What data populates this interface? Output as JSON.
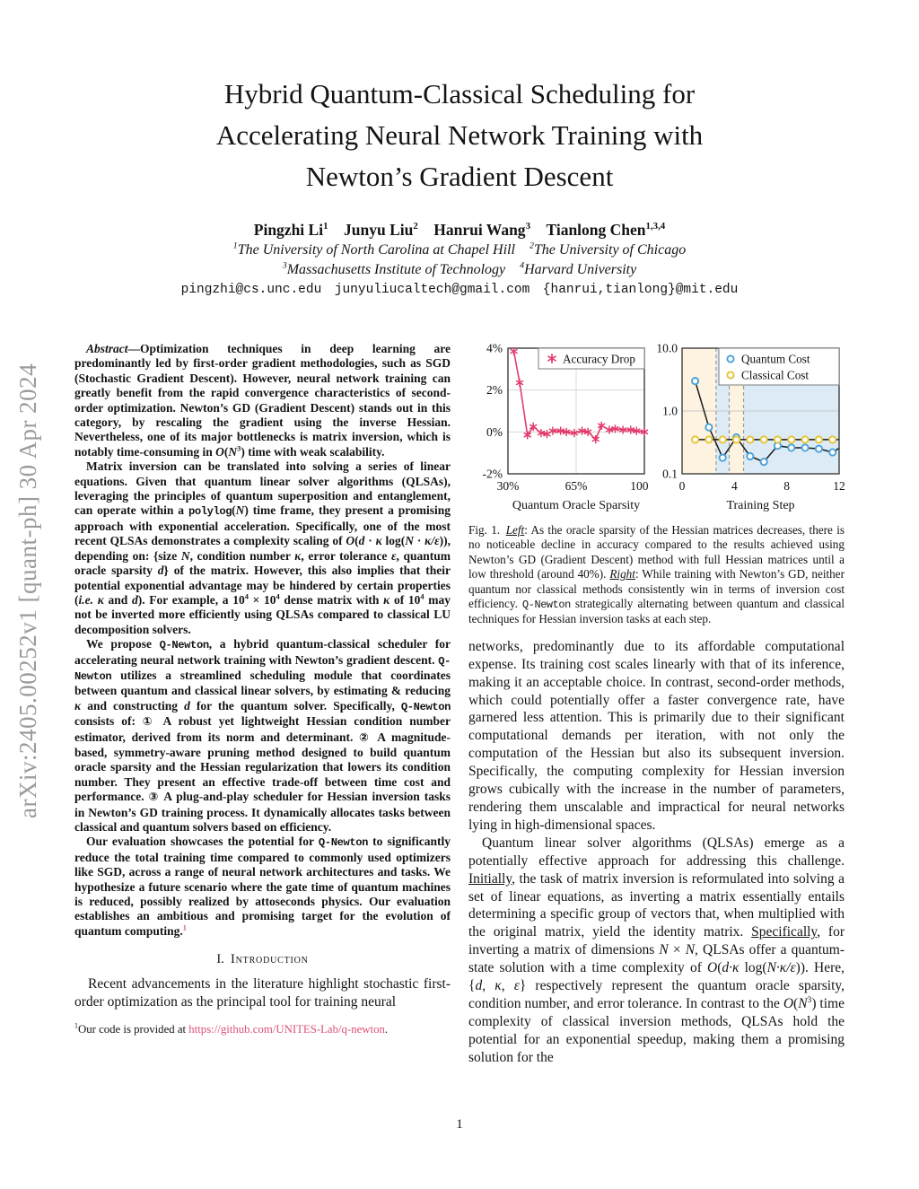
{
  "page": {
    "number": "1"
  },
  "arxiv_banner": "arXiv:2405.00252v1 [quant-ph] 30 Apr 2024",
  "header": {
    "title_lines": [
      "Hybrid Quantum-Classical Scheduling for",
      "Accelerating Neural Network Training with",
      "Newton’s Gradient Descent"
    ],
    "authors": [
      {
        "t": "Pingzhi Li"
      },
      {
        "t": "1",
        "c": "sup"
      },
      {
        "t": " "
      },
      {
        "t": "Junyu Liu"
      },
      {
        "t": "2",
        "c": "sup"
      },
      {
        "t": " "
      },
      {
        "t": "Hanrui Wang"
      },
      {
        "t": "3",
        "c": "sup"
      },
      {
        "t": " "
      },
      {
        "t": "Tianlong Chen"
      },
      {
        "t": "1,3,4",
        "c": "sup"
      }
    ],
    "affiliations_line1": [
      {
        "t": "1",
        "c": "sup"
      },
      {
        "t": "The University of North Carolina at Chapel Hill"
      },
      {
        "t": "  "
      },
      {
        "t": "2",
        "c": "sup"
      },
      {
        "t": "The University of Chicago"
      }
    ],
    "affiliations_line2": [
      {
        "t": "3",
        "c": "sup"
      },
      {
        "t": "Massachusetts Institute of Technology"
      },
      {
        "t": "  "
      },
      {
        "t": "4",
        "c": "sup"
      },
      {
        "t": "Harvard University"
      }
    ],
    "emails": "pingzhi@cs.unc.edu  junyuliucaltech@gmail.com  {hanrui,tianlong}@mit.edu"
  },
  "left_column": {
    "abstract_paragraphs": [
      [
        {
          "t": "Abstract",
          "c": "bi"
        },
        {
          "t": "—Optimization techniques in deep learning are predominantly led by first-order gradient methodologies, such as SGD (Stochastic Gradient Descent). However, neural network training can greatly benefit from the rapid convergence characteristics of second-order optimization. Newton’s GD (Gradient Descent) stands out in this category, by rescaling the gradient using the inverse Hessian. Nevertheless, one of its major bottlenecks is matrix inversion, which is notably time-consuming in "
        },
        {
          "t": "O",
          "c": "i"
        },
        {
          "t": "("
        },
        {
          "t": "N",
          "c": "i"
        },
        {
          "t": "3",
          "c": "sup"
        },
        {
          "t": ") time with weak scalability."
        }
      ],
      [
        {
          "t": "Matrix inversion can be translated into solving a series of linear equations. Given that quantum linear solver algorithms (QLSAs), leveraging the principles of quantum superposition and entanglement, can operate within a "
        },
        {
          "t": "polylog",
          "c": "tt"
        },
        {
          "t": "("
        },
        {
          "t": "N",
          "c": "i"
        },
        {
          "t": ") time frame, they present a promising approach with exponential acceleration. Specifically, one of the most recent QLSAs demonstrates a complexity scaling of "
        },
        {
          "t": "O",
          "c": "i"
        },
        {
          "t": "("
        },
        {
          "t": "d",
          "c": "i"
        },
        {
          "t": " · "
        },
        {
          "t": "κ",
          "c": "i"
        },
        {
          "t": " log("
        },
        {
          "t": "N",
          "c": "i"
        },
        {
          "t": " · "
        },
        {
          "t": "κ/ε",
          "c": "i"
        },
        {
          "t": ")), depending on: {size "
        },
        {
          "t": "N",
          "c": "i"
        },
        {
          "t": ", condition number "
        },
        {
          "t": "κ",
          "c": "i"
        },
        {
          "t": ", error tolerance "
        },
        {
          "t": "ε",
          "c": "i"
        },
        {
          "t": ", quantum oracle sparsity "
        },
        {
          "t": "d",
          "c": "i"
        },
        {
          "t": "} of the matrix. However, this also implies that their potential exponential advantage may be hindered by certain properties ("
        },
        {
          "t": "i.e.",
          "c": "i"
        },
        {
          "t": " "
        },
        {
          "t": "κ",
          "c": "i"
        },
        {
          "t": " and "
        },
        {
          "t": "d",
          "c": "i"
        },
        {
          "t": "). For example, a 10"
        },
        {
          "t": "4",
          "c": "sup"
        },
        {
          "t": " × 10"
        },
        {
          "t": "4",
          "c": "sup"
        },
        {
          "t": " dense matrix with "
        },
        {
          "t": "κ",
          "c": "i"
        },
        {
          "t": " of 10"
        },
        {
          "t": "4",
          "c": "sup"
        },
        {
          "t": " may not be inverted more efficiently using QLSAs compared to classical LU decomposition solvers."
        }
      ],
      [
        {
          "t": "We propose "
        },
        {
          "t": "Q-Newton",
          "c": "tt"
        },
        {
          "t": ", a hybrid quantum-classical scheduler for accelerating neural network training with Newton’s gradient descent. "
        },
        {
          "t": "Q-Newton",
          "c": "tt"
        },
        {
          "t": " utilizes a streamlined scheduling module that coordinates between quantum and classical linear solvers, by estimating & reducing "
        },
        {
          "t": "κ",
          "c": "i"
        },
        {
          "t": " and constructing "
        },
        {
          "t": "d",
          "c": "i"
        },
        {
          "t": " for the quantum solver. Specifically, "
        },
        {
          "t": "Q-Newton",
          "c": "tt"
        },
        {
          "t": " consists of: "
        },
        {
          "t": "①",
          "c": "circ"
        },
        {
          "t": " A robust yet lightweight Hessian condition number estimator, derived from its norm and determinant. "
        },
        {
          "t": "②",
          "c": "circ"
        },
        {
          "t": " A magnitude-based, symmetry-aware pruning method designed to build quantum oracle sparsity and the Hessian regularization that lowers its condition number. They present an effective trade-off between time cost and performance. "
        },
        {
          "t": "③",
          "c": "circ"
        },
        {
          "t": " A plug-and-play scheduler for Hessian inversion tasks in Newton’s GD training process. It dynamically allocates tasks between classical and quantum solvers based on efficiency."
        }
      ],
      [
        {
          "t": "Our evaluation showcases the potential for "
        },
        {
          "t": "Q-Newton",
          "c": "tt"
        },
        {
          "t": " to significantly reduce the total training time compared to commonly used optimizers like SGD, across a range of neural network architectures and tasks. We hypothesize a future scenario where the gate time of quantum machines is reduced, possibly realized by attoseconds physics. Our evaluation establishes an ambitious and promising target for the evolution of quantum computing."
        },
        {
          "t": "1",
          "c": "fnref"
        }
      ]
    ],
    "section1_heading": [
      {
        "t": "I. "
      },
      {
        "t": "Introduction",
        "c": "sc"
      }
    ],
    "intro_paragraph": "Recent advancements in the literature highlight stochastic first-order optimization as the principal tool for training neural",
    "footnote": [
      {
        "t": "1",
        "c": "sup"
      },
      {
        "t": "Our code is provided at "
      },
      {
        "t": "https://github.com/UNITES-Lab/q-newton",
        "c": "link"
      },
      {
        "t": "."
      }
    ]
  },
  "right_column": {
    "figure1": {
      "caption": [
        {
          "t": "Fig. 1. "
        },
        {
          "t": "Left",
          "c": "ui"
        },
        {
          "t": ": As the oracle sparsity of the Hessian matrices decreases, there is no noticeable decline in accuracy compared to the results achieved using Newton’s GD (Gradient Descent) method with full Hessian matrices until a low threshold (around 40%). "
        },
        {
          "t": "Right",
          "c": "ui"
        },
        {
          "t": ": While training with Newton’s GD, neither quantum nor classical methods consistently win in terms of inversion cost efficiency. "
        },
        {
          "t": "Q-Newton",
          "c": "tt"
        },
        {
          "t": " strategically alternating between quantum and classical techniques for Hessian inversion tasks at each step."
        }
      ],
      "chart_data": [
        {
          "type": "line",
          "xlabel": "Quantum Oracle Sparsity",
          "xlim": [
            30,
            100
          ],
          "ylim": [
            -2,
            4
          ],
          "xticks": {
            "values": [
              30,
              65,
              100
            ],
            "labels": [
              "30%",
              "65%",
              "100%"
            ]
          },
          "yticks": {
            "values": [
              -2,
              0,
              2,
              4
            ],
            "labels": [
              "-2%",
              "0%",
              "2%",
              "4%"
            ]
          },
          "x_gridlines": [
            65
          ],
          "legend_position": "top-right",
          "series": [
            {
              "name": "Accuracy Drop",
              "marker": "asterisk",
              "color": "#e23d6d",
              "line_color": "#e23d6d",
              "x": [
                33,
                36,
                40,
                43,
                47,
                50,
                53,
                57,
                60,
                64,
                68,
                71,
                75,
                78,
                82,
                85,
                89,
                93,
                96,
                100
              ],
              "y": [
                3.85,
                2.35,
                -0.15,
                0.25,
                -0.05,
                -0.1,
                0.05,
                0.05,
                0.0,
                -0.05,
                0.05,
                0.0,
                -0.35,
                0.3,
                0.1,
                0.15,
                0.1,
                0.1,
                0.05,
                0.0
              ]
            }
          ]
        },
        {
          "type": "line",
          "xlabel": "Training Step",
          "xlim": [
            0,
            12
          ],
          "ylog": true,
          "ylim": [
            0.1,
            10
          ],
          "xticks": {
            "values": [
              0,
              4,
              8,
              12
            ],
            "labels": [
              "0",
              "4",
              "8",
              "12"
            ]
          },
          "yticks": {
            "values": [
              10,
              1,
              0.1
            ],
            "labels": [
              "10.0",
              "1.0",
              "0.1"
            ]
          },
          "y_gridlines": [
            1.0
          ],
          "regions": [
            {
              "from": 0,
              "to": 2.6,
              "color": "#fdf3e0"
            },
            {
              "from": 2.6,
              "to": 3.6,
              "color": "#dcebf6"
            },
            {
              "from": 3.6,
              "to": 4.7,
              "color": "#fdf3e0"
            },
            {
              "from": 4.7,
              "to": 12,
              "color": "#dcebf6"
            }
          ],
          "dashed_lines": [
            2.6,
            3.6,
            4.7
          ],
          "legend_position": "top-right",
          "series": [
            {
              "name": "Quantum Cost",
              "marker": "circle",
              "color": "#4aa2d9",
              "line_color": "#1a1a1a",
              "x": [
                1,
                2.05,
                3.1,
                4.15,
                5.2,
                6.25,
                7.3,
                8.35,
                9.4,
                10.45,
                11.5
              ],
              "y": [
                3.0,
                0.55,
                0.18,
                0.38,
                0.19,
                0.155,
                0.28,
                0.26,
                0.26,
                0.25,
                0.22
              ],
              "tail": {
                "x": 12.3,
                "y": 0.28
              }
            },
            {
              "name": "Classical Cost",
              "marker": "circle",
              "color": "#e7c32f",
              "line_color": "#1a1a1a",
              "x": [
                1,
                2.05,
                3.1,
                4.15,
                5.2,
                6.25,
                7.3,
                8.35,
                9.4,
                10.45,
                11.5
              ],
              "y": [
                0.35,
                0.35,
                0.35,
                0.35,
                0.35,
                0.35,
                0.35,
                0.35,
                0.35,
                0.35,
                0.35
              ],
              "tail": {
                "x": 12.3,
                "y": 0.35
              }
            }
          ]
        }
      ]
    },
    "paragraphs": {
      "p1": "networks, predominantly due to its affordable computational expense. Its training cost scales linearly with that of its inference, making it an acceptable choice. In contrast, second-order methods, which could potentially offer a faster convergence rate, have garnered less attention. This is primarily due to their significant computational demands per iteration, with not only the computation of the Hessian but also its subsequent inversion. Specifically, the computing complexity for Hessian inversion grows cubically with the increase in the number of parameters, rendering them unscalable and impractical for neural networks lying in high-dimensional spaces.",
      "p2": [
        {
          "t": "Quantum linear solver algorithms (QLSAs) emerge as a potentially effective approach for addressing this challenge. "
        },
        {
          "t": "Initially",
          "c": "u"
        },
        {
          "t": ", the task of matrix inversion is reformulated into solving a set of linear equations, as inverting a matrix essentially entails determining a specific group of vectors that, when multiplied with the original matrix, yield the identity matrix. "
        },
        {
          "t": "Specifically",
          "c": "u"
        },
        {
          "t": ", for inverting a matrix of dimensions "
        },
        {
          "t": "N",
          "c": "i"
        },
        {
          "t": " × "
        },
        {
          "t": "N",
          "c": "i"
        },
        {
          "t": ", QLSAs offer a quantum-state solution with a time complexity of "
        },
        {
          "t": "O",
          "c": "i"
        },
        {
          "t": "("
        },
        {
          "t": "d·κ",
          "c": "i"
        },
        {
          "t": " log("
        },
        {
          "t": "N·κ/ε",
          "c": "i"
        },
        {
          "t": ")). Here, {"
        },
        {
          "t": "d",
          "c": "i"
        },
        {
          "t": ", "
        },
        {
          "t": "κ",
          "c": "i"
        },
        {
          "t": ", "
        },
        {
          "t": "ε",
          "c": "i"
        },
        {
          "t": "} respectively represent the quantum oracle sparsity, condition number, and error tolerance. In contrast to the "
        },
        {
          "t": "O",
          "c": "i"
        },
        {
          "t": "("
        },
        {
          "t": "N",
          "c": "i"
        },
        {
          "t": "3",
          "c": "sup"
        },
        {
          "t": ") time complexity of classical inversion methods, QLSAs hold the potential for an exponential speedup, making them a promising solution for the"
        }
      ]
    }
  }
}
